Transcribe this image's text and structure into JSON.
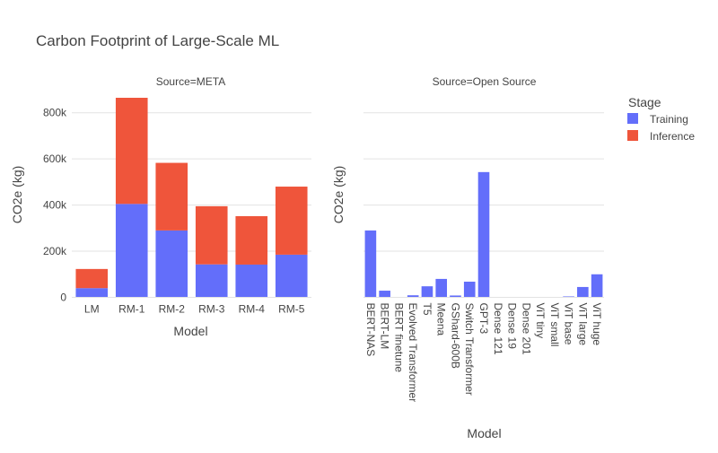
{
  "chart_data": {
    "type": "bar",
    "title": "Carbon Footprint of Large-Scale ML",
    "barmode": "stack",
    "legend": {
      "title": "Stage",
      "placement": "top-right",
      "items": [
        {
          "name": "Training",
          "color": "#636efa"
        },
        {
          "name": "Inference",
          "color": "#ef553b"
        }
      ]
    },
    "facets": [
      {
        "label": "Source=META",
        "xlabel": "Model",
        "ylabel": "CO2e (kg)",
        "ylim": [
          0,
          900000
        ],
        "yticks": [
          0,
          200000,
          400000,
          600000,
          800000
        ],
        "yticklabels": [
          "0",
          "200k",
          "400k",
          "600k",
          "800k"
        ],
        "categories": [
          "LM",
          "RM-1",
          "RM-2",
          "RM-3",
          "RM-4",
          "RM-5"
        ],
        "series": [
          {
            "name": "Training",
            "values": [
              40000,
              405000,
              290000,
              143000,
              142000,
              185000
            ]
          },
          {
            "name": "Inference",
            "values": [
              83000,
              460000,
              293000,
              252000,
              210000,
              295000
            ]
          }
        ]
      },
      {
        "label": "Source=Open Source",
        "xlabel": "Model",
        "ylabel": "CO2e (kg)",
        "ylim": [
          0,
          900000
        ],
        "yticks": [
          0,
          200000,
          400000,
          600000,
          800000
        ],
        "yticklabels": [
          "",
          "",
          "",
          "",
          ""
        ],
        "categories": [
          "BERT-NAS",
          "BERT-LM",
          "BERT finetune",
          "Evolved Transformer",
          "T5",
          "Meena",
          "GShard-600B",
          "Switch Transformer",
          "GPT-3",
          "Dense 121",
          "Dense 19",
          "Dense 201",
          "ViT tiny",
          "ViT small",
          "ViT base",
          "ViT large",
          "ViT huge"
        ],
        "series": [
          {
            "name": "Training",
            "values": [
              290000,
              29000,
              1500,
              9000,
              48000,
              80000,
              8000,
              68000,
              543000,
              400,
              200,
              500,
              300,
              700,
              4000,
              45000,
              100000
            ]
          },
          {
            "name": "Inference",
            "values": [
              0,
              0,
              0,
              0,
              0,
              0,
              0,
              0,
              0,
              0,
              0,
              0,
              0,
              0,
              0,
              0,
              0
            ]
          }
        ]
      }
    ]
  }
}
